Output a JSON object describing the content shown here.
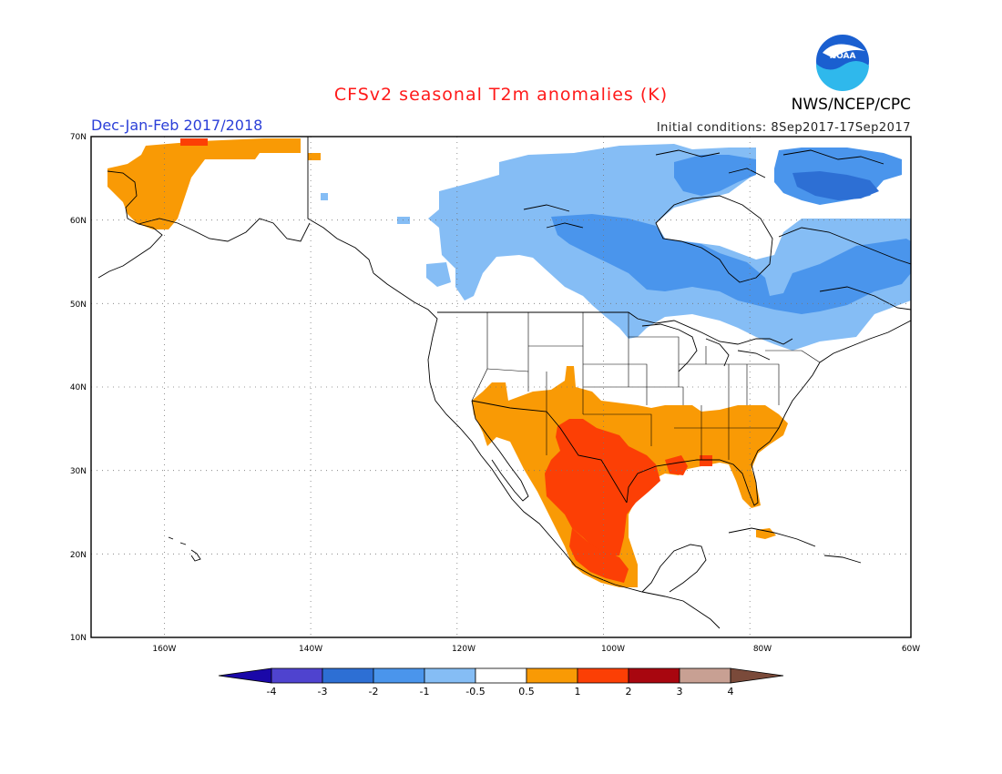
{
  "header": {
    "title": "CFSv2 seasonal T2m anomalies (K)",
    "season": "Dec-Jan-Feb 2017/2018",
    "initial_conditions": "Initial conditions: 8Sep2017-17Sep2017",
    "org": "NWS/NCEP/CPC",
    "logo_text": "NOAA"
  },
  "map": {
    "lon_range": [
      -172,
      -60
    ],
    "lat_range": [
      10,
      70
    ],
    "lon_ticks": [
      "160W",
      "140W",
      "120W",
      "100W",
      "80W",
      "60W"
    ],
    "lat_ticks": [
      "70N",
      "60N",
      "50N",
      "40N",
      "30N",
      "20N",
      "10N"
    ]
  },
  "colorbar": {
    "labels": [
      "-4",
      "-3",
      "-2",
      "-1",
      "-0.5",
      "0.5",
      "1",
      "2",
      "3",
      "4"
    ],
    "colors": [
      "#1a08a8",
      "#4f43cf",
      "#2d6fd4",
      "#4a95ec",
      "#85bdf5",
      "#ffffff",
      "#f99a05",
      "#fc3f05",
      "#a8060f",
      "#c8a093",
      "#7a4a3a"
    ]
  },
  "colors": {
    "cat_orange": "#f99a05",
    "cat_red": "#fc3f05",
    "cat_lightblue": "#85bdf5",
    "cat_blue": "#4a95ec",
    "cat_darkblue": "#2d6fd4"
  }
}
